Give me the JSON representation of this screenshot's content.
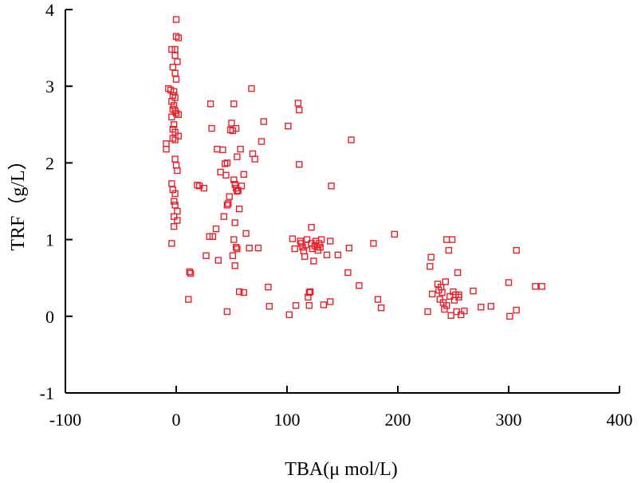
{
  "chart_data": {
    "type": "scatter",
    "title": "",
    "xlabel": "TBA(μ mol/L)",
    "ylabel": "TRF（g/L）",
    "xlim": [
      -100,
      400
    ],
    "ylim": [
      -1,
      4
    ],
    "xticks": [
      "-100",
      "0",
      "100",
      "200",
      "300",
      "400"
    ],
    "yticks": [
      "-1",
      "0",
      "1",
      "2",
      "3",
      "4"
    ],
    "grid": false,
    "legend": "none",
    "marker": "open-square",
    "color": "#e8202a",
    "series": [
      {
        "points": [
          [
            0,
            3.87
          ],
          [
            0,
            3.65
          ],
          [
            2,
            3.63
          ],
          [
            -1,
            3.48
          ],
          [
            -4,
            3.48
          ],
          [
            -1,
            3.4
          ],
          [
            1,
            3.32
          ],
          [
            -3,
            3.25
          ],
          [
            -1,
            3.17
          ],
          [
            0,
            3.09
          ],
          [
            -7,
            2.97
          ],
          [
            -5,
            2.95
          ],
          [
            -2,
            2.93
          ],
          [
            -3,
            2.88
          ],
          [
            -1,
            2.85
          ],
          [
            -4,
            2.8
          ],
          [
            -2,
            2.75
          ],
          [
            -3,
            2.7
          ],
          [
            -1,
            2.68
          ],
          [
            0,
            2.65
          ],
          [
            2,
            2.63
          ],
          [
            -4,
            2.6
          ],
          [
            -2,
            2.5
          ],
          [
            -3,
            2.44
          ],
          [
            -1,
            2.4
          ],
          [
            2,
            2.35
          ],
          [
            -3,
            2.32
          ],
          [
            -1,
            2.3
          ],
          [
            -9,
            2.25
          ],
          [
            -9,
            2.18
          ],
          [
            -1,
            2.05
          ],
          [
            0,
            1.97
          ],
          [
            1,
            1.9
          ],
          [
            -4,
            1.73
          ],
          [
            -3,
            1.65
          ],
          [
            -1,
            1.6
          ],
          [
            -2,
            1.5
          ],
          [
            -1,
            1.45
          ],
          [
            1,
            1.37
          ],
          [
            -2,
            1.3
          ],
          [
            1,
            1.25
          ],
          [
            -2,
            1.17
          ],
          [
            -4,
            0.95
          ],
          [
            12,
            0.58
          ],
          [
            13,
            0.56
          ],
          [
            11,
            0.22
          ],
          [
            19,
            1.71
          ],
          [
            21,
            1.7
          ],
          [
            25,
            1.67
          ],
          [
            27,
            0.79
          ],
          [
            31,
            2.77
          ],
          [
            32,
            2.45
          ],
          [
            30,
            1.04
          ],
          [
            33,
            1.04
          ],
          [
            37,
            2.18
          ],
          [
            36,
            1.14
          ],
          [
            38,
            0.73
          ],
          [
            40,
            1.88
          ],
          [
            42,
            2.17
          ],
          [
            44,
            1.99
          ],
          [
            46,
            2.0
          ],
          [
            45,
            1.84
          ],
          [
            43,
            1.3
          ],
          [
            46,
            1.45
          ],
          [
            47,
            1.47
          ],
          [
            48,
            1.56
          ],
          [
            49,
            2.43
          ],
          [
            50,
            2.52
          ],
          [
            51,
            2.42
          ],
          [
            52,
            1.78
          ],
          [
            53,
            1.72
          ],
          [
            54,
            1.67
          ],
          [
            55,
            1.63
          ],
          [
            52,
            2.77
          ],
          [
            54,
            2.45
          ],
          [
            55,
            2.08
          ],
          [
            56,
            1.64
          ],
          [
            57,
            1.4
          ],
          [
            53,
            1.22
          ],
          [
            52,
            1.0
          ],
          [
            54,
            0.9
          ],
          [
            55,
            0.88
          ],
          [
            51,
            0.79
          ],
          [
            53,
            0.66
          ],
          [
            58,
            2.18
          ],
          [
            61,
            1.85
          ],
          [
            59,
            1.7
          ],
          [
            63,
            1.08
          ],
          [
            57,
            0.32
          ],
          [
            61,
            0.31
          ],
          [
            46,
            0.06
          ],
          [
            66,
            0.89
          ],
          [
            68,
            2.97
          ],
          [
            69,
            2.12
          ],
          [
            71,
            2.05
          ],
          [
            74,
            0.89
          ],
          [
            77,
            2.28
          ],
          [
            79,
            2.54
          ],
          [
            83,
            0.38
          ],
          [
            84,
            0.13
          ],
          [
            101,
            2.48
          ],
          [
            102,
            0.02
          ],
          [
            105,
            1.01
          ],
          [
            107,
            0.88
          ],
          [
            108,
            0.14
          ],
          [
            110,
            2.78
          ],
          [
            111,
            2.69
          ],
          [
            111,
            1.98
          ],
          [
            112,
            0.98
          ],
          [
            113,
            0.95
          ],
          [
            114,
            0.9
          ],
          [
            115,
            0.85
          ],
          [
            116,
            0.78
          ],
          [
            117,
            0.93
          ],
          [
            118,
            1.0
          ],
          [
            119,
            0.25
          ],
          [
            120,
            0.31
          ],
          [
            121,
            0.32
          ],
          [
            122,
            1.16
          ],
          [
            122,
            0.95
          ],
          [
            123,
            0.88
          ],
          [
            124,
            0.72
          ],
          [
            125,
            0.92
          ],
          [
            126,
            0.98
          ],
          [
            127,
            0.9
          ],
          [
            128,
            0.86
          ],
          [
            129,
            0.95
          ],
          [
            130,
            0.9
          ],
          [
            131,
            1.0
          ],
          [
            133,
            0.15
          ],
          [
            136,
            0.8
          ],
          [
            139,
            0.98
          ],
          [
            139,
            0.19
          ],
          [
            140,
            1.7
          ],
          [
            146,
            0.8
          ],
          [
            155,
            0.57
          ],
          [
            156,
            0.89
          ],
          [
            158,
            2.3
          ],
          [
            165,
            0.4
          ],
          [
            178,
            0.95
          ],
          [
            182,
            0.22
          ],
          [
            185,
            0.11
          ],
          [
            197,
            1.07
          ],
          [
            120,
            0.14
          ],
          [
            227,
            0.06
          ],
          [
            229,
            0.65
          ],
          [
            230,
            0.77
          ],
          [
            231,
            0.29
          ],
          [
            236,
            0.42
          ],
          [
            237,
            0.34
          ],
          [
            238,
            0.22
          ],
          [
            239,
            0.38
          ],
          [
            240,
            0.31
          ],
          [
            241,
            0.18
          ],
          [
            242,
            0.09
          ],
          [
            243,
            0.45
          ],
          [
            244,
            1.0
          ],
          [
            244,
            0.14
          ],
          [
            246,
            0.86
          ],
          [
            247,
            0.26
          ],
          [
            248,
            0.01
          ],
          [
            249,
            1.0
          ],
          [
            250,
            0.32
          ],
          [
            251,
            0.21
          ],
          [
            252,
            0.28
          ],
          [
            253,
            0.06
          ],
          [
            254,
            0.57
          ],
          [
            255,
            0.28
          ],
          [
            257,
            0.02
          ],
          [
            260,
            0.07
          ],
          [
            268,
            0.33
          ],
          [
            275,
            0.12
          ],
          [
            284,
            0.13
          ],
          [
            300,
            0.44
          ],
          [
            301,
            0.0
          ],
          [
            307,
            0.86
          ],
          [
            307,
            0.08
          ],
          [
            324,
            0.39
          ],
          [
            330,
            0.39
          ],
          [
            255,
            0.25
          ]
        ]
      }
    ]
  }
}
